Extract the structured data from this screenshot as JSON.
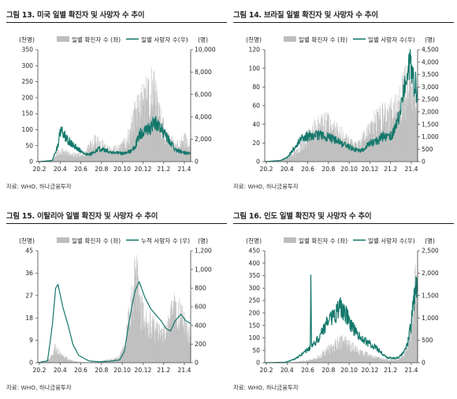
{
  "panels": [
    {
      "title": "그림 13. 미국 일별 확진자 및 사망자 수 추이",
      "source": "자료: WHO, 하나금융투자",
      "left_unit": "(천명)",
      "right_unit": "(명)",
      "legend_bar": "일별 확진자 수 (좌)",
      "legend_line": "일별 사망자 수(우)"
    },
    {
      "title": "그림 14. 브라질 일별 확진자 및 사망자 수 추이",
      "source": "자료: WHO, 하나금융투자",
      "left_unit": "(천명)",
      "right_unit": "(명)",
      "legend_bar": "일별 확진자 수 (좌)",
      "legend_line": "일별 사망자 수(우)"
    },
    {
      "title": "그림 15. 이탈리아 일별 확진자 및 사망자 수 추이",
      "source": "자료: WHO, 하나금융투자",
      "left_unit": "(천명)",
      "right_unit": "(명)",
      "legend_bar": "일별 확진자 수 (좌)",
      "legend_line": "누적 사망자 수 (우)"
    },
    {
      "title": "그림 16. 인도 일별 확진자 및 사망자 수 추이",
      "source": "자료: WHO, 하나금융투자",
      "left_unit": "(천명)",
      "right_unit": "(명)",
      "legend_bar": "일별 확진자 수 (좌)",
      "legend_line": "일별 사망자 수(우)"
    }
  ],
  "colors": {
    "bar": "#bdbdbd",
    "line": "#13786b",
    "axis": "#444444"
  },
  "chart_data": [
    {
      "type": "bar+line",
      "x_ticks": [
        "20.2",
        "20.4",
        "20.6",
        "20.8",
        "20.10",
        "20.12",
        "21.2",
        "21.4"
      ],
      "x_range": [
        "2020-02-01",
        "2021-04-30"
      ],
      "left_axis": {
        "ticks": [
          0,
          50,
          100,
          150,
          200,
          250,
          300,
          350
        ],
        "ylim": [
          0,
          350
        ]
      },
      "right_axis": {
        "ticks": [
          0,
          2000,
          4000,
          6000,
          8000,
          10000
        ],
        "tick_labels": [
          "0",
          "2,000",
          "4,000",
          "6,000",
          "8,000",
          "10,000"
        ],
        "ylim": [
          0,
          10000
        ]
      },
      "series": [
        {
          "name": "일별 확진자 수 (좌)",
          "axis": "left",
          "style": "bar",
          "dates": [
            "2020-02-01",
            "2020-03-01",
            "2020-03-15",
            "2020-04-01",
            "2020-04-15",
            "2020-05-01",
            "2020-05-15",
            "2020-06-01",
            "2020-06-15",
            "2020-07-01",
            "2020-07-15",
            "2020-08-01",
            "2020-08-15",
            "2020-09-01",
            "2020-09-15",
            "2020-10-01",
            "2020-10-15",
            "2020-11-01",
            "2020-11-15",
            "2020-12-01",
            "2020-12-15",
            "2021-01-01",
            "2021-01-08",
            "2021-01-15",
            "2021-02-01",
            "2021-02-15",
            "2021-03-01",
            "2021-03-15",
            "2021-04-01",
            "2021-04-15",
            "2021-04-30"
          ],
          "values": [
            0,
            1,
            8,
            30,
            32,
            28,
            25,
            22,
            25,
            45,
            70,
            62,
            50,
            40,
            38,
            45,
            60,
            95,
            160,
            170,
            215,
            230,
            260,
            210,
            130,
            85,
            65,
            55,
            65,
            70,
            55
          ]
        },
        {
          "name": "일별 사망자 수(우)",
          "axis": "right",
          "style": "line",
          "dates": [
            "2020-02-01",
            "2020-03-15",
            "2020-04-01",
            "2020-04-08",
            "2020-04-15",
            "2020-04-22",
            "2020-05-01",
            "2020-05-15",
            "2020-06-01",
            "2020-06-15",
            "2020-07-01",
            "2020-07-15",
            "2020-08-01",
            "2020-08-15",
            "2020-09-01",
            "2020-09-15",
            "2020-10-01",
            "2020-10-15",
            "2020-11-01",
            "2020-11-15",
            "2020-12-01",
            "2020-12-15",
            "2021-01-01",
            "2021-01-12",
            "2021-01-20",
            "2021-02-01",
            "2021-02-15",
            "2021-03-01",
            "2021-03-15",
            "2021-04-01",
            "2021-04-15",
            "2021-04-30"
          ],
          "values": [
            0,
            100,
            1500,
            2700,
            2600,
            2300,
            1900,
            1500,
            1100,
            750,
            600,
            800,
            1150,
            1050,
            900,
            800,
            750,
            750,
            900,
            1300,
            2500,
            2700,
            3000,
            3600,
            3200,
            2900,
            2300,
            1700,
            1100,
            900,
            750,
            700
          ]
        }
      ]
    },
    {
      "type": "bar+line",
      "x_ticks": [
        "20.2",
        "20.4",
        "20.6",
        "20.8",
        "20.10",
        "20.12",
        "21.2",
        "21.4"
      ],
      "x_range": [
        "2020-02-01",
        "2021-04-30"
      ],
      "left_axis": {
        "ticks": [
          0,
          20,
          40,
          60,
          80,
          100,
          120
        ],
        "ylim": [
          0,
          120
        ]
      },
      "right_axis": {
        "ticks": [
          0,
          500,
          1000,
          1500,
          2000,
          2500,
          3000,
          3500,
          4000,
          4500
        ],
        "tick_labels": [
          "0",
          "500",
          "1,000",
          "1,500",
          "2,000",
          "2,500",
          "3,000",
          "3,500",
          "4,000",
          "4,500"
        ],
        "ylim": [
          0,
          4500
        ]
      },
      "series": [
        {
          "name": "일별 확진자 수 (좌)",
          "axis": "left",
          "style": "bar",
          "dates": [
            "2020-02-01",
            "2020-03-15",
            "2020-04-01",
            "2020-04-15",
            "2020-05-01",
            "2020-05-15",
            "2020-06-01",
            "2020-06-15",
            "2020-07-01",
            "2020-07-15",
            "2020-08-01",
            "2020-08-15",
            "2020-09-01",
            "2020-09-15",
            "2020-10-01",
            "2020-10-15",
            "2020-11-01",
            "2020-11-15",
            "2020-12-01",
            "2020-12-15",
            "2021-01-01",
            "2021-01-15",
            "2021-02-01",
            "2021-02-15",
            "2021-03-01",
            "2021-03-15",
            "2021-04-01",
            "2021-04-15",
            "2021-04-30"
          ],
          "values": [
            0,
            1,
            3,
            6,
            10,
            16,
            24,
            30,
            36,
            40,
            42,
            40,
            35,
            30,
            25,
            20,
            18,
            22,
            35,
            45,
            45,
            50,
            50,
            55,
            65,
            80,
            80,
            70,
            65
          ]
        },
        {
          "name": "일별 사망자 수(우)",
          "axis": "right",
          "style": "line",
          "dates": [
            "2020-02-01",
            "2020-03-20",
            "2020-04-10",
            "2020-05-01",
            "2020-05-20",
            "2020-06-01",
            "2020-06-15",
            "2020-07-01",
            "2020-07-15",
            "2020-08-01",
            "2020-08-15",
            "2020-09-01",
            "2020-09-15",
            "2020-10-01",
            "2020-10-15",
            "2020-11-01",
            "2020-11-15",
            "2020-12-01",
            "2020-12-15",
            "2021-01-01",
            "2021-01-15",
            "2021-02-01",
            "2021-02-15",
            "2021-03-01",
            "2021-03-15",
            "2021-03-25",
            "2021-04-01",
            "2021-04-08",
            "2021-04-15",
            "2021-04-30"
          ],
          "values": [
            0,
            50,
            200,
            600,
            900,
            1000,
            1050,
            1050,
            1050,
            1000,
            950,
            850,
            750,
            650,
            550,
            450,
            450,
            650,
            750,
            850,
            1000,
            1050,
            1100,
            1600,
            2400,
            3000,
            3300,
            4200,
            3300,
            2800
          ]
        }
      ]
    },
    {
      "type": "bar+line",
      "x_ticks": [
        "20.2",
        "20.4",
        "20.6",
        "20.8",
        "20.10",
        "20.12",
        "21.2",
        "21.4"
      ],
      "x_range": [
        "2020-02-01",
        "2021-04-30"
      ],
      "left_axis": {
        "ticks": [
          0,
          9,
          18,
          27,
          36,
          45
        ],
        "ylim": [
          0,
          45
        ]
      },
      "right_axis": {
        "ticks": [
          0,
          200,
          400,
          600,
          800,
          1000,
          1200
        ],
        "tick_labels": [
          "0",
          "200",
          "400",
          "600",
          "800",
          "1,000",
          "1,200"
        ],
        "ylim": [
          0,
          1200
        ]
      },
      "series": [
        {
          "name": "일별 확진자 수 (좌)",
          "axis": "left",
          "style": "bar",
          "dates": [
            "2020-02-01",
            "2020-03-01",
            "2020-03-15",
            "2020-03-22",
            "2020-04-01",
            "2020-04-15",
            "2020-05-01",
            "2020-05-15",
            "2020-06-01",
            "2020-07-01",
            "2020-08-01",
            "2020-08-15",
            "2020-09-01",
            "2020-09-15",
            "2020-10-01",
            "2020-10-15",
            "2020-11-01",
            "2020-11-15",
            "2020-11-25",
            "2020-12-01",
            "2020-12-15",
            "2021-01-01",
            "2021-01-15",
            "2021-02-01",
            "2021-02-15",
            "2021-03-01",
            "2021-03-15",
            "2021-04-01",
            "2021-04-15",
            "2021-04-30"
          ],
          "values": [
            0,
            1,
            4,
            6,
            5,
            3,
            1.5,
            0.8,
            0.3,
            0.2,
            0.4,
            0.8,
            1.5,
            1.5,
            2.5,
            7,
            22,
            34,
            38,
            24,
            18,
            16,
            14,
            12,
            12,
            19,
            24,
            20,
            15,
            12
          ]
        },
        {
          "name": "누적 사망자 수 (우)",
          "axis": "right",
          "style": "line",
          "dates": [
            "2020-02-01",
            "2020-03-01",
            "2020-03-15",
            "2020-03-25",
            "2020-04-01",
            "2020-04-15",
            "2020-05-01",
            "2020-05-15",
            "2020-06-01",
            "2020-07-01",
            "2020-08-01",
            "2020-09-01",
            "2020-10-01",
            "2020-10-15",
            "2020-11-01",
            "2020-11-15",
            "2020-11-28",
            "2020-12-15",
            "2021-01-01",
            "2021-01-15",
            "2021-02-01",
            "2021-02-15",
            "2021-03-01",
            "2021-03-15",
            "2021-04-01",
            "2021-04-15",
            "2021-04-30"
          ],
          "values": [
            0,
            20,
            400,
            800,
            840,
            600,
            400,
            200,
            80,
            20,
            10,
            15,
            30,
            120,
            500,
            760,
            870,
            700,
            580,
            520,
            450,
            370,
            340,
            450,
            520,
            450,
            420
          ]
        }
      ]
    },
    {
      "type": "bar+line",
      "x_ticks": [
        "20.2",
        "20.4",
        "20.6",
        "20.8",
        "20.10",
        "20.12",
        "21.2",
        "21.4"
      ],
      "x_range": [
        "2020-02-01",
        "2021-04-30"
      ],
      "left_axis": {
        "ticks": [
          0,
          50,
          100,
          150,
          200,
          250,
          300,
          350,
          400,
          450
        ],
        "ylim": [
          0,
          450
        ]
      },
      "right_axis": {
        "ticks": [
          0,
          500,
          1000,
          1500,
          2000,
          2500
        ],
        "tick_labels": [
          "0",
          "500",
          "1,000",
          "1,500",
          "2,000",
          "2,500"
        ],
        "ylim": [
          0,
          2500
        ]
      },
      "series": [
        {
          "name": "일별 확진자 수 (좌)",
          "axis": "left",
          "style": "bar",
          "dates": [
            "2020-02-01",
            "2020-04-01",
            "2020-05-01",
            "2020-06-01",
            "2020-06-15",
            "2020-07-01",
            "2020-07-15",
            "2020-08-01",
            "2020-08-15",
            "2020-09-01",
            "2020-09-15",
            "2020-10-01",
            "2020-10-15",
            "2020-11-01",
            "2020-11-15",
            "2020-12-01",
            "2020-12-15",
            "2021-01-01",
            "2021-01-15",
            "2021-02-01",
            "2021-02-15",
            "2021-03-01",
            "2021-03-15",
            "2021-04-01",
            "2021-04-10",
            "2021-04-20",
            "2021-04-30"
          ],
          "values": [
            0,
            0.5,
            3,
            8,
            12,
            18,
            30,
            50,
            62,
            80,
            92,
            82,
            68,
            50,
            40,
            35,
            28,
            20,
            15,
            12,
            12,
            15,
            25,
            65,
            140,
            280,
            350
          ]
        },
        {
          "name": "일별 사망자 수(우)",
          "axis": "right",
          "style": "line",
          "dates": [
            "2020-02-01",
            "2020-04-01",
            "2020-05-01",
            "2020-06-01",
            "2020-06-15",
            "2020-06-17",
            "2020-06-19",
            "2020-07-01",
            "2020-07-15",
            "2020-08-01",
            "2020-08-15",
            "2020-09-01",
            "2020-09-15",
            "2020-09-20",
            "2020-10-01",
            "2020-10-15",
            "2020-11-01",
            "2020-11-15",
            "2020-12-01",
            "2020-12-15",
            "2021-01-01",
            "2021-01-15",
            "2021-02-01",
            "2021-02-15",
            "2021-03-01",
            "2021-03-15",
            "2021-04-01",
            "2021-04-10",
            "2021-04-20",
            "2021-04-30"
          ],
          "values": [
            0,
            10,
            80,
            250,
            350,
            2000,
            350,
            450,
            600,
            850,
            1000,
            1100,
            1250,
            1150,
            1050,
            850,
            650,
            550,
            450,
            400,
            300,
            200,
            110,
            100,
            110,
            180,
            450,
            800,
            1400,
            2000
          ]
        }
      ]
    }
  ]
}
